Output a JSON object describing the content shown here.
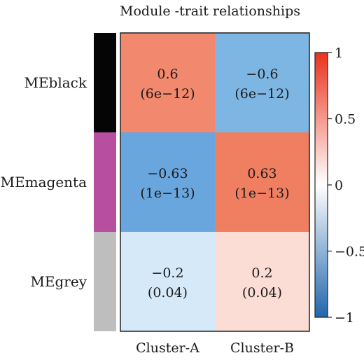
{
  "chart_data": {
    "type": "heatmap",
    "title": "Module -trait relationships",
    "rows": [
      {
        "label": "MEblack",
        "color": "#050505"
      },
      {
        "label": "MEmagenta",
        "color": "#b84ea0"
      },
      {
        "label": "MEgrey",
        "color": "#bebebe"
      }
    ],
    "columns": [
      "Cluster-A",
      "Cluster-B"
    ],
    "values": [
      [
        0.6,
        -0.6
      ],
      [
        -0.63,
        0.63
      ],
      [
        -0.2,
        0.2
      ]
    ],
    "value_labels": [
      [
        "0.6",
        "−0.6"
      ],
      [
        "−0.63",
        "0.63"
      ],
      [
        "−0.2",
        "0.2"
      ]
    ],
    "p_labels": [
      [
        "(6e−12)",
        "(6e−12)"
      ],
      [
        "(1e−13)",
        "(1e−13)"
      ],
      [
        "(0.04)",
        "(0.04)"
      ]
    ],
    "colorscale": {
      "min": -1,
      "max": 1,
      "ticks": [
        1,
        0.5,
        0,
        -0.5,
        -1
      ],
      "tick_labels": [
        "1",
        "0.5",
        "0",
        "−0.5",
        "−1"
      ],
      "low_color": "#2166ac",
      "mid_color": "#ffffff",
      "high_color": "#e8331d"
    },
    "cell_colors": [
      [
        "#f2886e",
        "#7eb6e3"
      ],
      [
        "#6aa6de",
        "#f07e60"
      ],
      [
        "#d6e9f8",
        "#fbddd5"
      ]
    ]
  }
}
